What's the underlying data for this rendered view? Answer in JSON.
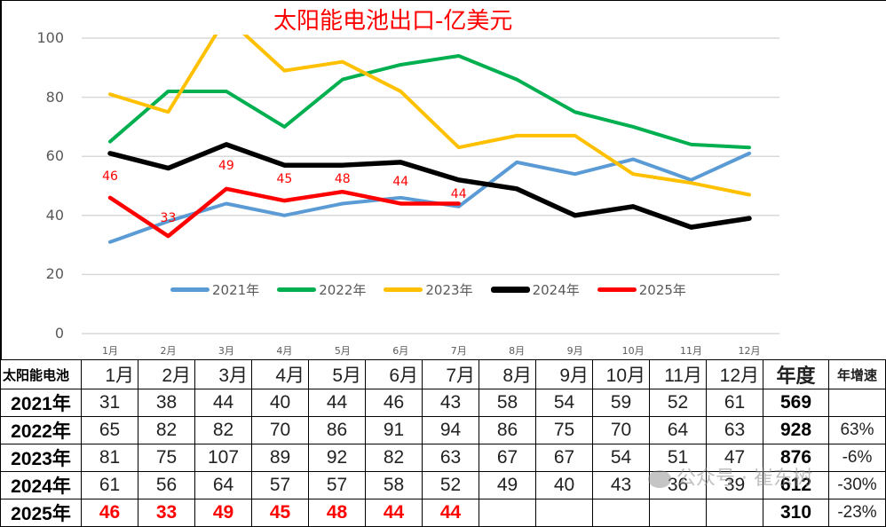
{
  "chart_data": {
    "type": "line",
    "title": "太阳能电池出口-亿美元",
    "xlabel": "",
    "ylabel": "",
    "ylim": [
      0,
      100
    ],
    "yticks": [
      0,
      20,
      40,
      60,
      80,
      100
    ],
    "grid": true,
    "legend_position": "bottom-inside",
    "categories": [
      "1月",
      "2月",
      "3月",
      "4月",
      "5月",
      "6月",
      "7月",
      "8月",
      "9月",
      "10月",
      "11月",
      "12月"
    ],
    "series": [
      {
        "name": "2021年",
        "color": "#5b9bd5",
        "values": [
          31,
          38,
          44,
          40,
          44,
          46,
          43,
          58,
          54,
          59,
          52,
          61
        ]
      },
      {
        "name": "2022年",
        "color": "#00b050",
        "values": [
          65,
          82,
          82,
          70,
          86,
          91,
          94,
          86,
          75,
          70,
          64,
          63
        ]
      },
      {
        "name": "2023年",
        "color": "#ffc000",
        "values": [
          81,
          75,
          107,
          89,
          92,
          82,
          63,
          67,
          67,
          54,
          51,
          47
        ]
      },
      {
        "name": "2024年",
        "color": "#000000",
        "values": [
          61,
          56,
          64,
          57,
          57,
          58,
          52,
          49,
          40,
          43,
          36,
          39
        ]
      },
      {
        "name": "2025年",
        "color": "#ff0000",
        "values": [
          46,
          33,
          49,
          45,
          48,
          44,
          44
        ],
        "data_labels": [
          "46",
          "33",
          "49",
          "45",
          "48",
          "44",
          "44"
        ]
      }
    ]
  },
  "chart": {
    "title": "太阳能电池出口-亿美元",
    "yticks": [
      "0",
      "20",
      "40",
      "60",
      "80",
      "100"
    ],
    "xticks": [
      "1月",
      "2月",
      "3月",
      "4月",
      "5月",
      "6月",
      "7月",
      "8月",
      "9月",
      "10月",
      "11月",
      "12月"
    ],
    "legend": [
      "2021年",
      "2022年",
      "2023年",
      "2024年",
      "2025年"
    ]
  },
  "table": {
    "corner": "太阳能电池",
    "months": [
      "1月",
      "2月",
      "3月",
      "4月",
      "5月",
      "6月",
      "7月",
      "8月",
      "9月",
      "10月",
      "11月",
      "12月"
    ],
    "annual_label": "年度",
    "growth_label": "年增速",
    "rows": [
      {
        "year": "2021年",
        "values": [
          "31",
          "38",
          "44",
          "40",
          "44",
          "46",
          "43",
          "58",
          "54",
          "59",
          "52",
          "61"
        ],
        "annual": "569",
        "growth": ""
      },
      {
        "year": "2022年",
        "values": [
          "65",
          "82",
          "82",
          "70",
          "86",
          "91",
          "94",
          "86",
          "75",
          "70",
          "64",
          "63"
        ],
        "annual": "928",
        "growth": "63%"
      },
      {
        "year": "2023年",
        "values": [
          "81",
          "75",
          "107",
          "89",
          "92",
          "82",
          "63",
          "67",
          "67",
          "54",
          "51",
          "47"
        ],
        "annual": "876",
        "growth": "-6%"
      },
      {
        "year": "2024年",
        "values": [
          "61",
          "56",
          "64",
          "57",
          "57",
          "58",
          "52",
          "49",
          "40",
          "43",
          "36",
          "39"
        ],
        "annual": "612",
        "growth": "-30%"
      },
      {
        "year": "2025年",
        "values": [
          "46",
          "33",
          "49",
          "45",
          "48",
          "44",
          "44",
          "",
          "",
          "",
          "",
          ""
        ],
        "annual": "310",
        "growth": "-23%"
      }
    ]
  },
  "watermark": "公众号 · 崔东树"
}
